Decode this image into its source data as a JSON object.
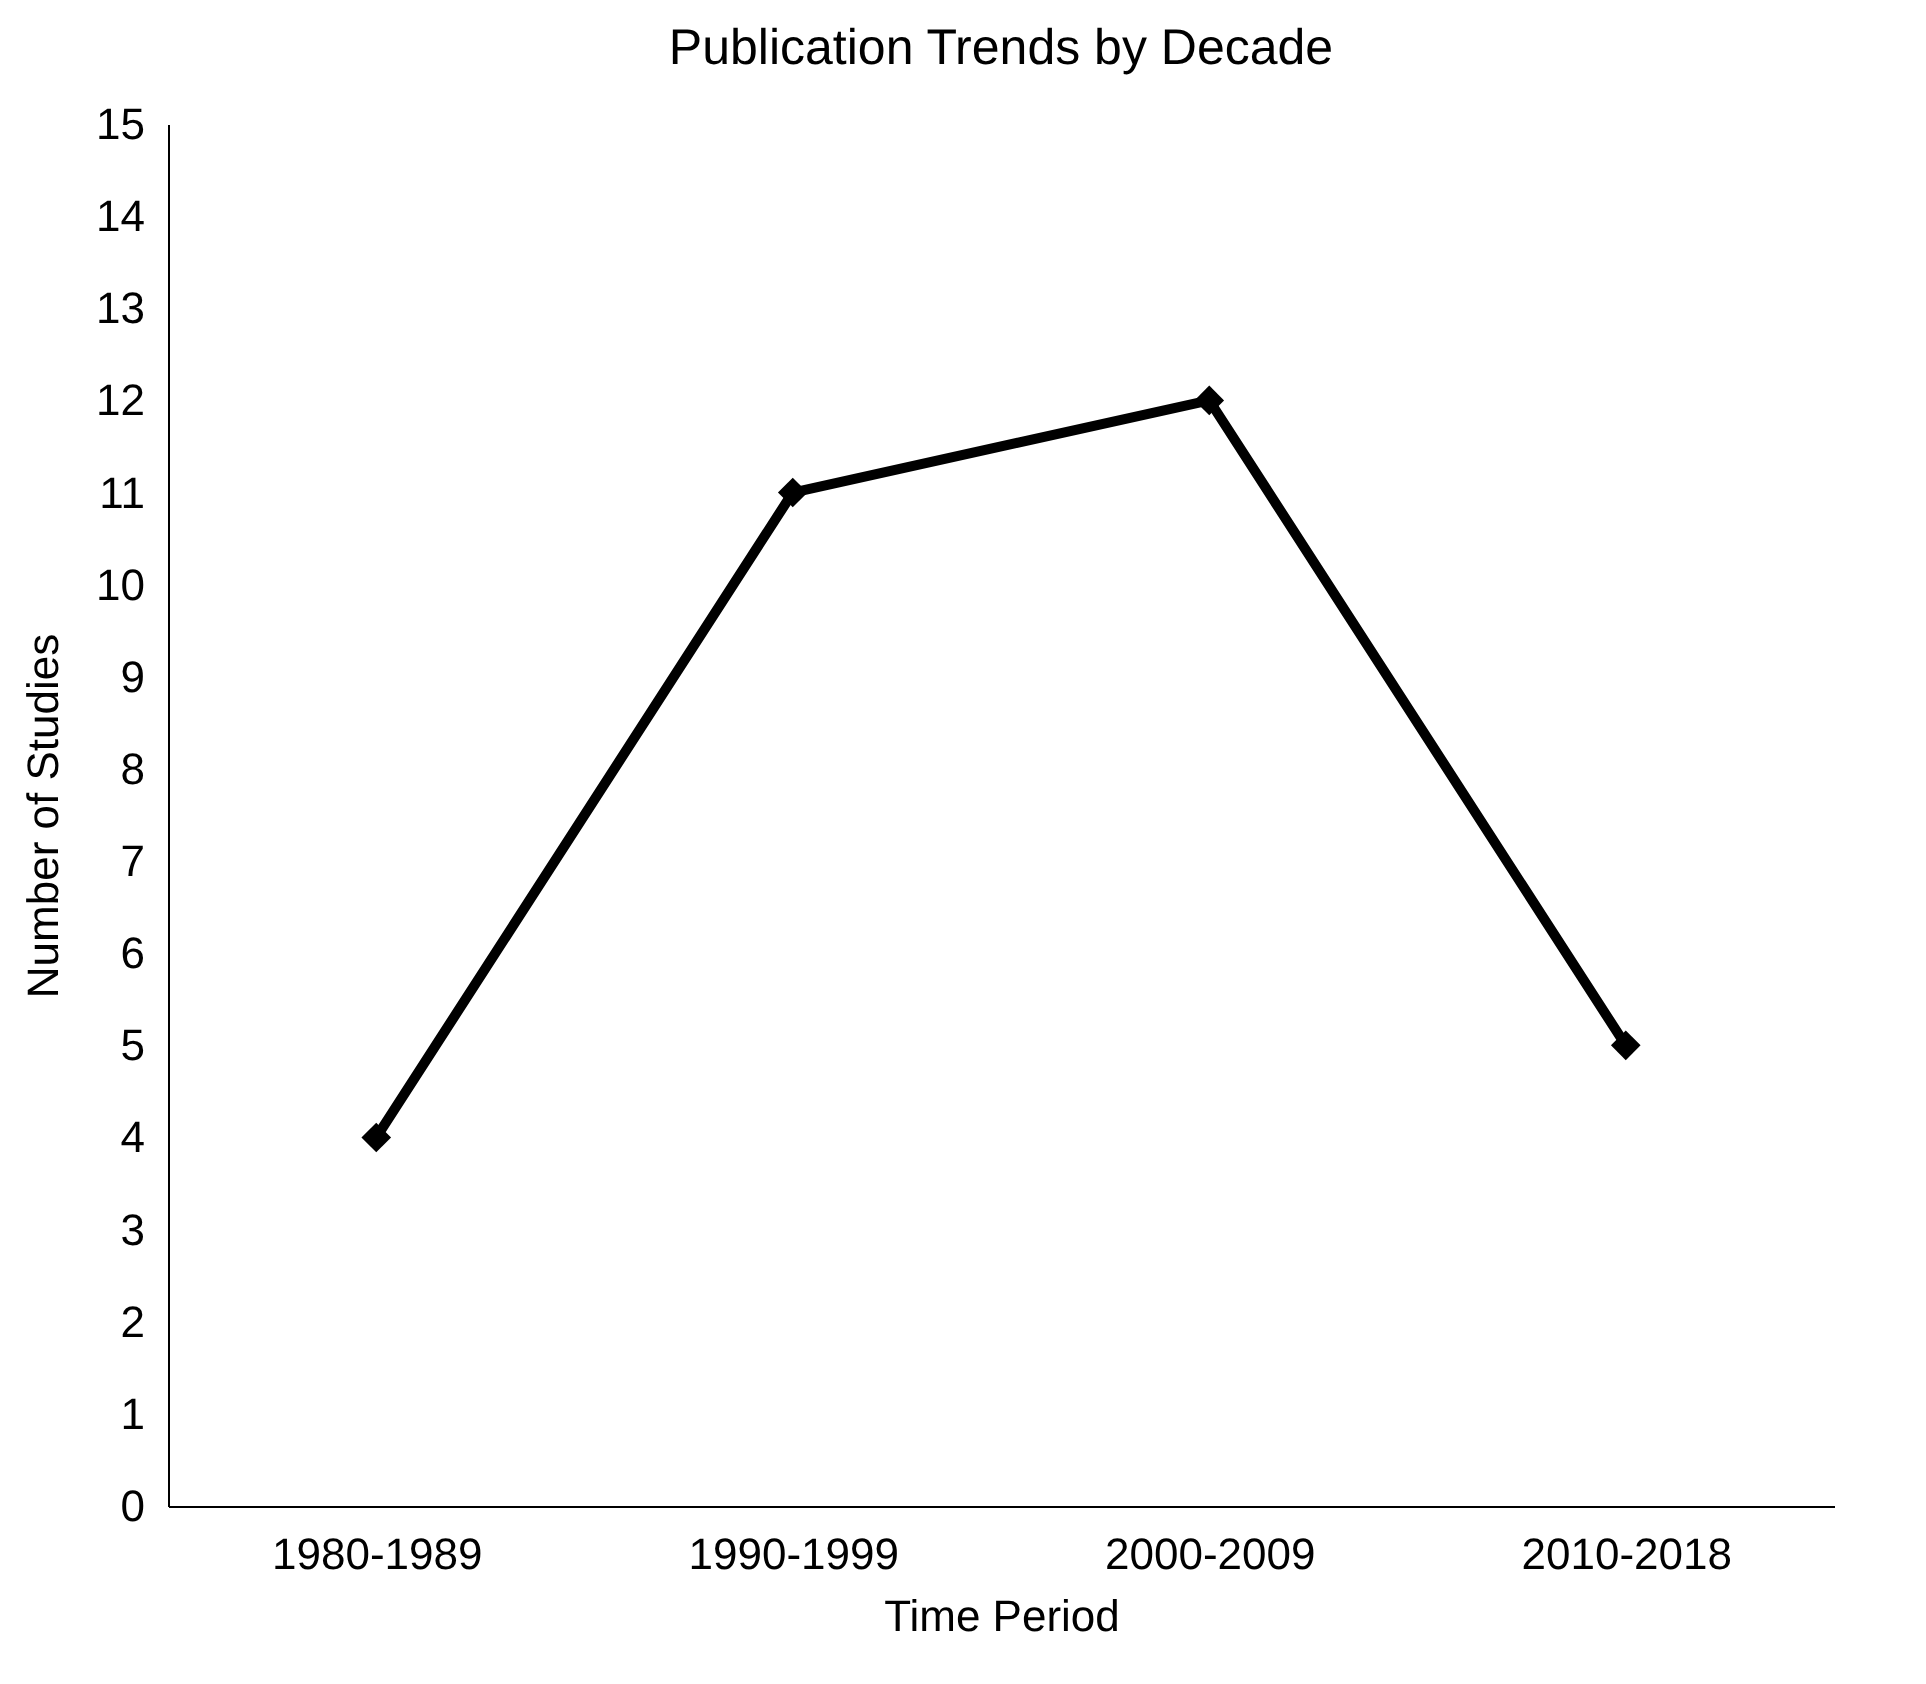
{
  "chart_data": {
    "type": "line",
    "title": "Publication Trends by Decade",
    "xlabel": "Time Period",
    "ylabel": "Number of Studies",
    "categories": [
      "1980-1989",
      "1990-1999",
      "2000-2009",
      "2010-2018"
    ],
    "series": [
      {
        "color": "#000000",
        "values": [
          4,
          11,
          12,
          5
        ]
      }
    ],
    "ylim": [
      0,
      15
    ],
    "yticks": [
      0,
      1,
      2,
      3,
      4,
      5,
      6,
      7,
      8,
      9,
      10,
      11,
      12,
      13,
      14,
      15
    ],
    "marker": "diamond",
    "line_style": "solid"
  }
}
